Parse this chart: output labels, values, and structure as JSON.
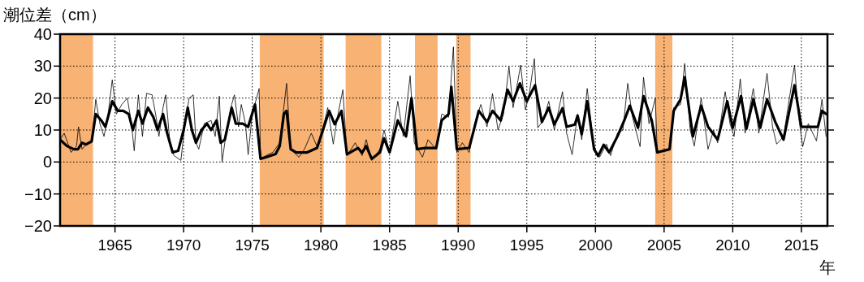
{
  "chart_data": {
    "type": "line",
    "ylabel": "潮位差（cm）",
    "xlabel": "年",
    "xlim": [
      1961,
      2016.9
    ],
    "ylim": [
      -20,
      40
    ],
    "xticks": [
      1965,
      1970,
      1975,
      1980,
      1985,
      1990,
      1995,
      2000,
      2005,
      2010,
      2015
    ],
    "yticks": [
      {
        "value": -20,
        "label": "−20"
      },
      {
        "value": -10,
        "label": "−10"
      },
      0,
      10,
      20,
      30,
      40
    ],
    "grid": true,
    "bands": [
      {
        "axis": "x",
        "from": 1961.0,
        "to": 1963.4,
        "color": "#f7b274"
      },
      {
        "axis": "x",
        "from": 1975.55,
        "to": 1980.2,
        "color": "#f7b274"
      },
      {
        "axis": "x",
        "from": 1981.8,
        "to": 1984.4,
        "color": "#f7b274"
      },
      {
        "axis": "x",
        "from": 1986.85,
        "to": 1988.5,
        "color": "#f7b274"
      },
      {
        "axis": "x",
        "from": 1989.85,
        "to": 1990.9,
        "color": "#f7b274"
      },
      {
        "axis": "x",
        "from": 2004.35,
        "to": 2005.6,
        "color": "#f7b274"
      }
    ],
    "series": [
      {
        "color": "#000000",
        "x": [
          1961.0,
          1961.3,
          1961.8,
          1962.2,
          1962.34,
          1962.6,
          1963.0,
          1963.3,
          1963.6,
          1963.9,
          1964.2,
          1964.5,
          1964.8,
          1965.1,
          1965.5,
          1965.9,
          1966.2,
          1966.4,
          1966.7,
          1967.0,
          1967.3,
          1967.7,
          1968.0,
          1968.2,
          1968.5,
          1968.7,
          1969.0,
          1969.3,
          1969.8,
          1970.1,
          1970.4,
          1970.7,
          1970.9,
          1971.1,
          1971.5,
          1972.0,
          1972.3,
          1972.6,
          1972.8,
          1973.1,
          1973.5,
          1973.7,
          1974.0,
          1974.2,
          1974.5,
          1974.7,
          1975.0,
          1975.5,
          1975.6,
          1976.0,
          1976.5,
          1977.0,
          1977.5,
          1977.8,
          1978.4,
          1978.8,
          1979.3,
          1979.7,
          1980.0,
          1980.5,
          1980.9,
          1981.2,
          1981.6,
          1981.9,
          1982.5,
          1983.0,
          1983.3,
          1983.7,
          1984.3,
          1984.6,
          1985.0,
          1985.6,
          1986.0,
          1986.5,
          1986.8,
          1987.4,
          1987.8,
          1988.4,
          1988.8,
          1989.3,
          1989.65,
          1989.9,
          1990.3,
          1990.8,
          1991.2,
          1991.65,
          1992.1,
          1992.5,
          1992.9,
          1993.3,
          1993.7,
          1994.0,
          1994.55,
          1994.9,
          1995.2,
          1995.55,
          1995.8,
          1996.2,
          1996.6,
          1997.0,
          1997.6,
          1997.9,
          1998.3,
          1998.7,
          1999.0,
          1999.4,
          1999.9,
          2000.3,
          2000.8,
          2001.1,
          2001.6,
          2002.0,
          2002.35,
          2002.7,
          2003.25,
          2003.5,
          2003.9,
          2004.36,
          2004.5,
          2005.4,
          2005.7,
          2006.2,
          2006.5,
          2006.9,
          2007.2,
          2007.7,
          2008.2,
          2008.6,
          2008.9,
          2009.45,
          2009.8,
          2010.1,
          2010.55,
          2010.9,
          2011.5,
          2011.9,
          2012.5,
          2012.9,
          2013.2,
          2013.7,
          2014.5,
          2014.8,
          2015.1,
          2015.5,
          2016.1,
          2016.5,
          2016.8
        ],
        "values": [
          7,
          9,
          3,
          5,
          11,
          4,
          6,
          6,
          19.6,
          12,
          8,
          15,
          25.7,
          15,
          18,
          20,
          12,
          3.5,
          21,
          8,
          21.5,
          21,
          14,
          8,
          17,
          21,
          6,
          2,
          0.5,
          12,
          20,
          21,
          6,
          4,
          12,
          13,
          8,
          20.6,
          0,
          9,
          18,
          21,
          11,
          18,
          12,
          2.3,
          15,
          23,
          1,
          2,
          3,
          6,
          24.6,
          4,
          1.5,
          4,
          9,
          5,
          8,
          17,
          5.6,
          14,
          22.6,
          2,
          6,
          2,
          7,
          0.5,
          4,
          10,
          3,
          19,
          8,
          27,
          6,
          1.5,
          7,
          4,
          15,
          14,
          36,
          3,
          6,
          3,
          12,
          18,
          11,
          21.4,
          10,
          15,
          29.8,
          17,
          30.3,
          16.3,
          22,
          32.3,
          10.7,
          13,
          19,
          10,
          22,
          9,
          2.3,
          15,
          7,
          23,
          4,
          1.5,
          5.6,
          2,
          9,
          10,
          24.6,
          14,
          4.8,
          26.5,
          12,
          20,
          3,
          4,
          17,
          18,
          30.8,
          10,
          5,
          20,
          4,
          10,
          6,
          22,
          12,
          8,
          26,
          9,
          23,
          9,
          27.7,
          11,
          5.6,
          8,
          30.3,
          14,
          4.8,
          12,
          6.6,
          19.6,
          8
        ]
      },
      {
        "color": "#000000",
        "x": [
          1961.0,
          1961.5,
          1962.0,
          1962.3,
          1962.6,
          1962.9,
          1963.3,
          1963.6,
          1964.0,
          1964.3,
          1964.8,
          1965.2,
          1965.6,
          1966.0,
          1966.3,
          1966.7,
          1967.0,
          1967.4,
          1967.8,
          1968.1,
          1968.5,
          1968.8,
          1969.2,
          1969.6,
          1970.0,
          1970.3,
          1970.6,
          1970.9,
          1971.3,
          1971.7,
          1972.0,
          1972.4,
          1972.7,
          1973.0,
          1973.5,
          1973.8,
          1974.3,
          1974.7,
          1975.2,
          1975.6,
          1976.0,
          1976.7,
          1977.0,
          1977.3,
          1977.5,
          1977.8,
          1978.2,
          1979.0,
          1979.72,
          1980.6,
          1981.0,
          1981.5,
          1981.9,
          1982.7,
          1983.0,
          1983.3,
          1983.7,
          1984.3,
          1984.6,
          1985.0,
          1985.6,
          1986.2,
          1986.6,
          1987.0,
          1987.6,
          1988.4,
          1988.8,
          1989.3,
          1989.5,
          1989.9,
          1990.8,
          1991.5,
          1992.1,
          1992.5,
          1993.1,
          1993.6,
          1994.0,
          1994.5,
          1995.0,
          1995.6,
          1996.1,
          1996.6,
          1997.0,
          1997.6,
          1997.9,
          1998.5,
          1998.7,
          1999.0,
          1999.4,
          1999.9,
          2000.2,
          2000.6,
          2001.0,
          2001.6,
          2002.1,
          2002.5,
          2003.1,
          2003.5,
          2004.1,
          2004.5,
          2005.4,
          2005.7,
          2006.2,
          2006.5,
          2007.1,
          2007.7,
          2008.2,
          2008.9,
          2009.6,
          2010.0,
          2010.6,
          2011.0,
          2011.5,
          2012.0,
          2012.5,
          2013.1,
          2013.7,
          2014.5,
          2015.0,
          2016.2,
          2016.5,
          2016.8
        ],
        "values": [
          7,
          5,
          4,
          4,
          6,
          5.5,
          6.5,
          15,
          13,
          11,
          19,
          16,
          16,
          15,
          10,
          16,
          12,
          17,
          14,
          10,
          15,
          9,
          3,
          3.5,
          10,
          17,
          10,
          6,
          10,
          12,
          10,
          13,
          6,
          7,
          17,
          12,
          12,
          11,
          18,
          1,
          1.5,
          2.5,
          5,
          15,
          16,
          4,
          3,
          3,
          4.4,
          16,
          11.8,
          16,
          2.4,
          4.4,
          2.9,
          5,
          1,
          3,
          7.4,
          3,
          13,
          8,
          20,
          4,
          4.4,
          4.4,
          13,
          15,
          23.5,
          4,
          4.4,
          16,
          12.5,
          16,
          13,
          22.6,
          19,
          24.6,
          19,
          24,
          12.5,
          17,
          11.7,
          16.8,
          11,
          11.7,
          14.5,
          8.7,
          19,
          4,
          1.9,
          5.4,
          3,
          8,
          13,
          17.6,
          10.7,
          20.6,
          13,
          3,
          4,
          16,
          19.6,
          26.5,
          8,
          17.6,
          11,
          7,
          19,
          10.7,
          20.6,
          10.4,
          19.6,
          10.7,
          19.6,
          12.5,
          7,
          24,
          11,
          11,
          16,
          15
        ]
      }
    ]
  }
}
